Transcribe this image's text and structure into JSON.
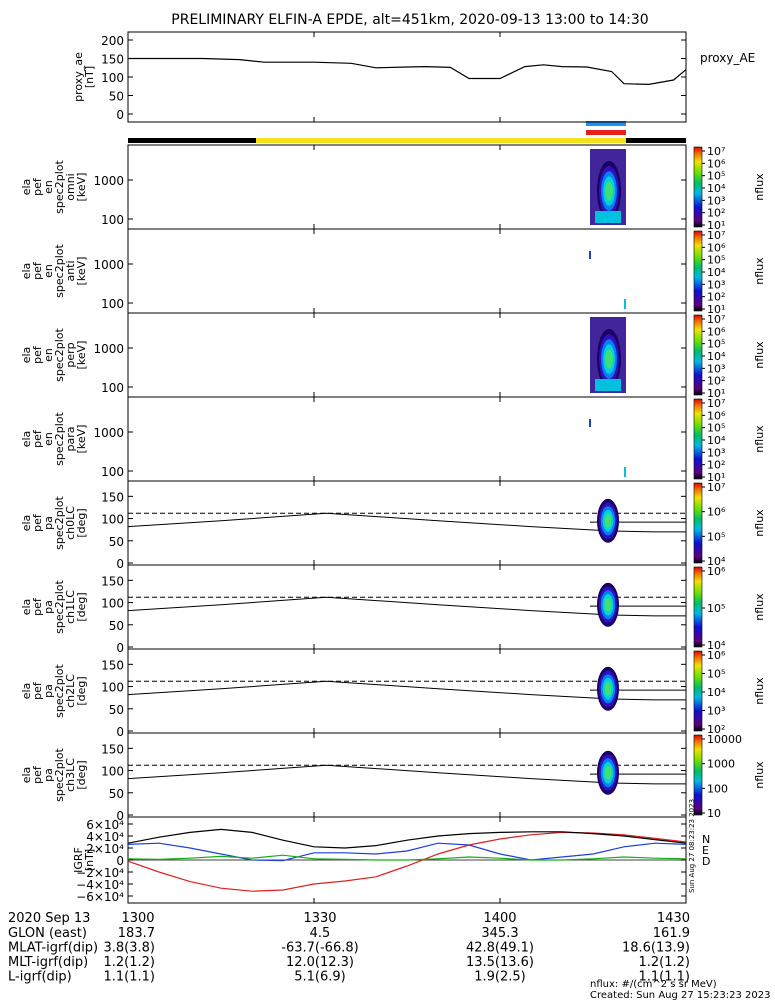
{
  "title": "PRELIMINARY ELFIN-A EPDE, alt=451km, 2020-09-13 13:00 to 14:30",
  "colors": {
    "bar_black": "#000000",
    "bar_yellow": "#f5e11c",
    "bar_blue": "#1e90ff",
    "bar_red": "#e8201a",
    "bx": "#e02020",
    "by": "#1f3fd8",
    "bz": "#10b010",
    "bt": "#000000"
  },
  "footer": {
    "date": "2020 Sep 13",
    "rows": [
      {
        "label": "GLON (east)",
        "values": [
          "183.7",
          "4.5",
          "345.3",
          "161.9"
        ]
      },
      {
        "label": "MLAT-igrf(dip)",
        "values": [
          "3.8(3.8)",
          "-63.7(-66.8)",
          "42.8(49.1)",
          "18.6(13.9)"
        ]
      },
      {
        "label": "MLT-igrf(dip)",
        "values": [
          "1.2(1.2)",
          "12.0(12.3)",
          "13.5(13.6)",
          "1.2(1.2)"
        ]
      },
      {
        "label": "L-igrf(dip)",
        "values": [
          "1.1(1.1)",
          "5.1(6.9)",
          "1.9(2.5)",
          "1.1(1.1)"
        ]
      }
    ],
    "time_labels": [
      "1300",
      "1330",
      "1400",
      "1430"
    ],
    "units_note": "nflux: #/(cm^2 s sr MeV)",
    "created": "Created: Sun Aug 27 15:23:23 2023",
    "side_stamp": "Sun Aug 27 08:23:23 2023"
  },
  "chart_data": [
    {
      "type": "line",
      "ylabel": [
        "proxy_ae",
        "[nT]"
      ],
      "series_label": "proxy_AE",
      "ylim": [
        0,
        200
      ],
      "yticks": [
        "0",
        "50",
        "100",
        "150",
        "200"
      ],
      "x": [
        0,
        12,
        18,
        22,
        30,
        36,
        40,
        45,
        48,
        52,
        55,
        60,
        64,
        67,
        70,
        74,
        78,
        80,
        84,
        88,
        90
      ],
      "values": [
        150,
        150,
        147,
        140,
        140,
        137,
        125,
        127,
        128,
        126,
        96,
        96,
        128,
        133,
        128,
        127,
        115,
        82,
        80,
        92,
        120
      ]
    },
    {
      "type": "heatmap",
      "ylabel": [
        "ela",
        "pef",
        "en",
        "spec2plot",
        "omni",
        "[keV]"
      ],
      "yticks": [
        "100",
        "1000"
      ],
      "colorbar_label": "nflux",
      "colorbar_ticks": [
        "10¹",
        "10²",
        "10³",
        "10⁴",
        "10⁵",
        "10⁶",
        "10⁷"
      ]
    },
    {
      "type": "heatmap",
      "ylabel": [
        "ela",
        "pef",
        "en",
        "spec2plot",
        "anti",
        "[keV]"
      ],
      "yticks": [
        "100",
        "1000"
      ],
      "colorbar_label": "nflux",
      "colorbar_ticks": [
        "10¹",
        "10²",
        "10³",
        "10⁴",
        "10⁵",
        "10⁶",
        "10⁷"
      ]
    },
    {
      "type": "heatmap",
      "ylabel": [
        "ela",
        "pef",
        "en",
        "spec2plot",
        "perp",
        "[keV]"
      ],
      "yticks": [
        "100",
        "1000"
      ],
      "colorbar_label": "nflux",
      "colorbar_ticks": [
        "10¹",
        "10²",
        "10³",
        "10⁴",
        "10⁵",
        "10⁶",
        "10⁷"
      ]
    },
    {
      "type": "heatmap",
      "ylabel": [
        "ela",
        "pef",
        "en",
        "spec2plot",
        "para",
        "[keV]"
      ],
      "yticks": [
        "100",
        "1000"
      ],
      "colorbar_label": "nflux",
      "colorbar_ticks": [
        "10¹",
        "10²",
        "10³",
        "10⁴",
        "10⁵",
        "10⁶",
        "10⁷"
      ]
    },
    {
      "type": "heatmap",
      "ylabel": [
        "ela",
        "pef",
        "pa",
        "spec2plot",
        "ch0LC",
        "[deg]"
      ],
      "yticks": [
        "0",
        "50",
        "100",
        "150"
      ],
      "ylim": [
        0,
        180
      ],
      "colorbar_label": "nflux",
      "colorbar_ticks": [
        "10⁴",
        "10⁵",
        "10⁶",
        "10⁷"
      ]
    },
    {
      "type": "heatmap",
      "ylabel": [
        "ela",
        "pef",
        "pa",
        "spec2plot",
        "ch1LC",
        "[deg]"
      ],
      "yticks": [
        "0",
        "50",
        "100",
        "150"
      ],
      "ylim": [
        0,
        180
      ],
      "colorbar_label": "nflux",
      "colorbar_ticks": [
        "10⁴",
        "10⁵",
        "10⁶"
      ]
    },
    {
      "type": "heatmap",
      "ylabel": [
        "ela",
        "pef",
        "pa",
        "spec2plot",
        "ch2LC",
        "[deg]"
      ],
      "yticks": [
        "0",
        "50",
        "100",
        "150"
      ],
      "ylim": [
        0,
        180
      ],
      "colorbar_label": "nflux",
      "colorbar_ticks": [
        "10²",
        "10³",
        "10⁴",
        "10⁵",
        "10⁶"
      ]
    },
    {
      "type": "heatmap",
      "ylabel": [
        "ela",
        "pef",
        "pa",
        "spec2plot",
        "ch3LC",
        "[deg]"
      ],
      "yticks": [
        "0",
        "50",
        "100",
        "150"
      ],
      "ylim": [
        0,
        180
      ],
      "colorbar_label": "nflux",
      "colorbar_ticks": [
        "10",
        "100",
        "1000",
        "10000"
      ]
    },
    {
      "type": "line",
      "ylabel": [
        "IGRF",
        "[nT]"
      ],
      "ylim": [
        -65000,
        65000
      ],
      "yticks": [
        "−6×10⁴",
        "−4×10⁴",
        "−2×10⁴",
        "0",
        "2×10⁴",
        "4×10⁴",
        "6×10⁴"
      ],
      "legend": [
        "N",
        "E",
        "D"
      ],
      "x": [
        0,
        5,
        10,
        15,
        20,
        25,
        30,
        35,
        40,
        45,
        50,
        55,
        60,
        65,
        70,
        75,
        80,
        85,
        90
      ],
      "series": [
        {
          "values": [
            -2000,
            -20000,
            -36000,
            -47000,
            -52000,
            -50000,
            -40000,
            -35000,
            -28000,
            -10000,
            10000,
            25000,
            35000,
            42000,
            46000,
            45000,
            42000,
            36000,
            30000
          ]
        },
        {
          "values": [
            26000,
            28000,
            20000,
            10000,
            0,
            -1000,
            12000,
            12000,
            10000,
            15000,
            28000,
            25000,
            10000,
            0,
            5000,
            10000,
            22000,
            28000,
            26000
          ]
        },
        {
          "values": [
            2000,
            1000,
            3000,
            6000,
            3000,
            8000,
            2000,
            1000,
            0,
            0,
            2000,
            5000,
            3000,
            0,
            0,
            2000,
            5000,
            3000,
            2000
          ]
        },
        {
          "values": [
            28000,
            38000,
            46000,
            51000,
            46000,
            33000,
            22000,
            20000,
            24000,
            33000,
            40000,
            44000,
            46000,
            47000,
            47000,
            44000,
            40000,
            34000,
            28000
          ]
        }
      ]
    }
  ]
}
